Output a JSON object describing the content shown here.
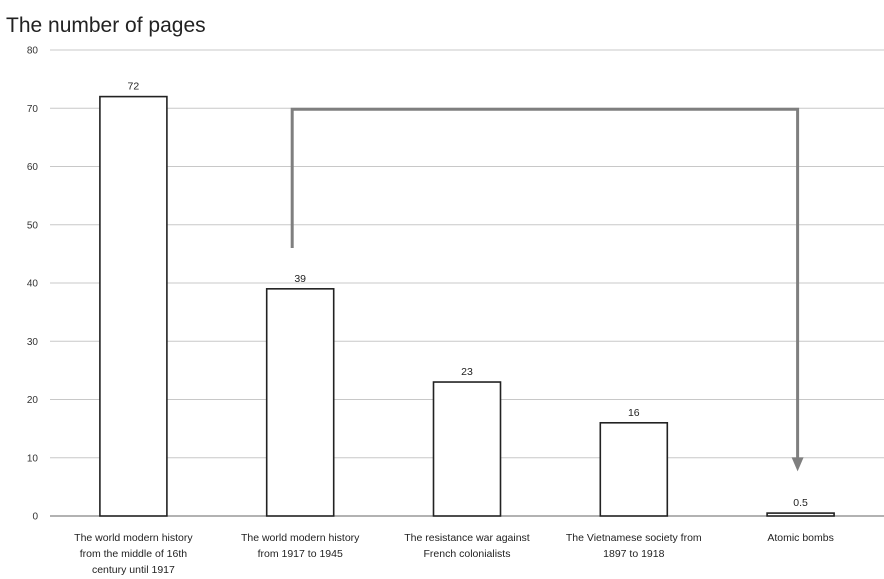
{
  "chart_data": {
    "type": "bar",
    "title": "The number of pages",
    "xlabel": "",
    "ylabel": "",
    "ylim": [
      0,
      80
    ],
    "yticks": [
      0,
      10,
      20,
      30,
      40,
      50,
      60,
      70,
      80
    ],
    "grid": true,
    "categories": [
      [
        "The world modern history",
        "from the middle of 16th",
        "century until 1917"
      ],
      [
        "The world modern history",
        "from 1917 to 1945"
      ],
      [
        "The resistance war against",
        "French colonialists"
      ],
      [
        "The Vietnamese society from",
        "1897 to 1918"
      ],
      [
        "Atomic bombs"
      ]
    ],
    "values": [
      72,
      39,
      23,
      16,
      0.5
    ],
    "data_labels": [
      "72",
      "39",
      "23",
      "16",
      "0.5"
    ],
    "annotation": {
      "type": "arrow",
      "from_category": 1,
      "to_category": 4,
      "level": 70
    },
    "colors": {
      "bar_fill": "#ffffff",
      "bar_stroke": "#222222",
      "grid": "#c8c8c8",
      "arrow": "#7f7f7f"
    }
  }
}
